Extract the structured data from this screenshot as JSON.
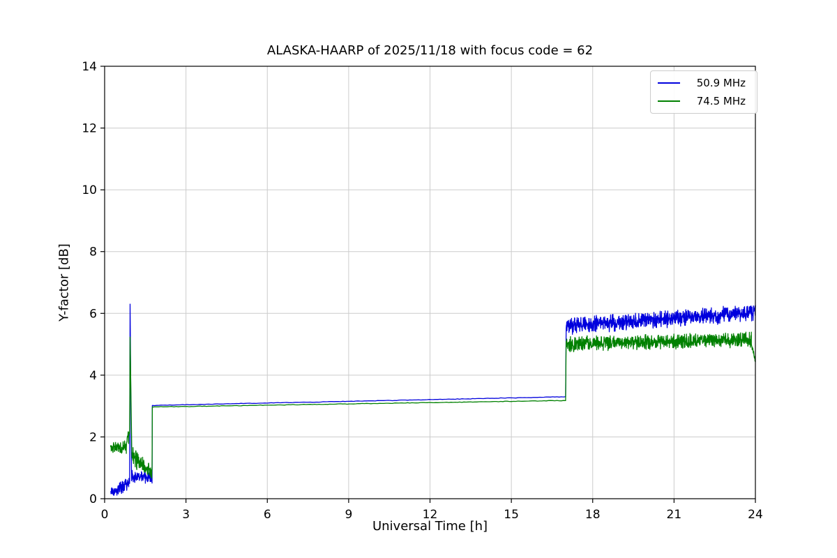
{
  "chart_data": {
    "type": "line",
    "title": "ALASKA-HAARP of 2025/11/18 with focus code = 62",
    "xlabel": "Universal Time [h]",
    "ylabel": "Y-factor [dB]",
    "xlim": [
      0,
      24
    ],
    "ylim": [
      0,
      14
    ],
    "xticks": [
      0,
      3,
      6,
      9,
      12,
      15,
      18,
      21,
      24
    ],
    "yticks": [
      0,
      2,
      4,
      6,
      8,
      10,
      12,
      14
    ],
    "grid": true,
    "grid_color": "#cccccc",
    "axis_color": "#000000",
    "legend_position": "upper right",
    "series": [
      {
        "name": "50.9 MHz",
        "color": "#0000dd",
        "segments": [
          {
            "x0": 0.22,
            "x1": 0.55,
            "y0": 0.18,
            "y1": 0.3,
            "noise": 0.1
          },
          {
            "x0": 0.55,
            "x1": 0.92,
            "y0": 0.32,
            "y1": 0.52,
            "noise": 0.13
          },
          {
            "x0": 0.92,
            "x1": 0.94,
            "y0": 0.6,
            "y1": 6.3,
            "noise": 0
          },
          {
            "x0": 0.94,
            "x1": 0.99,
            "y0": 6.3,
            "y1": 0.8,
            "noise": 0
          },
          {
            "x0": 0.99,
            "x1": 1.75,
            "y0": 0.72,
            "y1": 0.68,
            "noise": 0.12
          },
          {
            "x0": 1.76,
            "x1": 17.0,
            "y0": 3.02,
            "y1": 3.3,
            "noise": 0.006
          },
          {
            "x0": 17.02,
            "x1": 24.0,
            "y0": 5.6,
            "y1": 6.02,
            "noise": 0.17
          }
        ]
      },
      {
        "name": "74.5 MHz",
        "color": "#008000",
        "segments": [
          {
            "x0": 0.22,
            "x1": 0.8,
            "y0": 1.65,
            "y1": 1.68,
            "noise": 0.14
          },
          {
            "x0": 0.8,
            "x1": 0.92,
            "y0": 1.8,
            "y1": 2.1,
            "noise": 0.18
          },
          {
            "x0": 0.92,
            "x1": 0.94,
            "y0": 2.1,
            "y1": 5.2,
            "noise": 0
          },
          {
            "x0": 0.94,
            "x1": 1.0,
            "y0": 5.2,
            "y1": 1.6,
            "noise": 0.05
          },
          {
            "x0": 1.0,
            "x1": 1.45,
            "y0": 1.4,
            "y1": 1.1,
            "noise": 0.2
          },
          {
            "x0": 1.45,
            "x1": 1.75,
            "y0": 1.0,
            "y1": 0.85,
            "noise": 0.17
          },
          {
            "x0": 1.76,
            "x1": 17.0,
            "y0": 2.97,
            "y1": 3.18,
            "noise": 0.006
          },
          {
            "x0": 17.02,
            "x1": 23.85,
            "y0": 5.0,
            "y1": 5.15,
            "noise": 0.15
          },
          {
            "x0": 23.85,
            "x1": 24.0,
            "y0": 5.05,
            "y1": 4.4,
            "noise": 0.08
          }
        ]
      }
    ]
  }
}
